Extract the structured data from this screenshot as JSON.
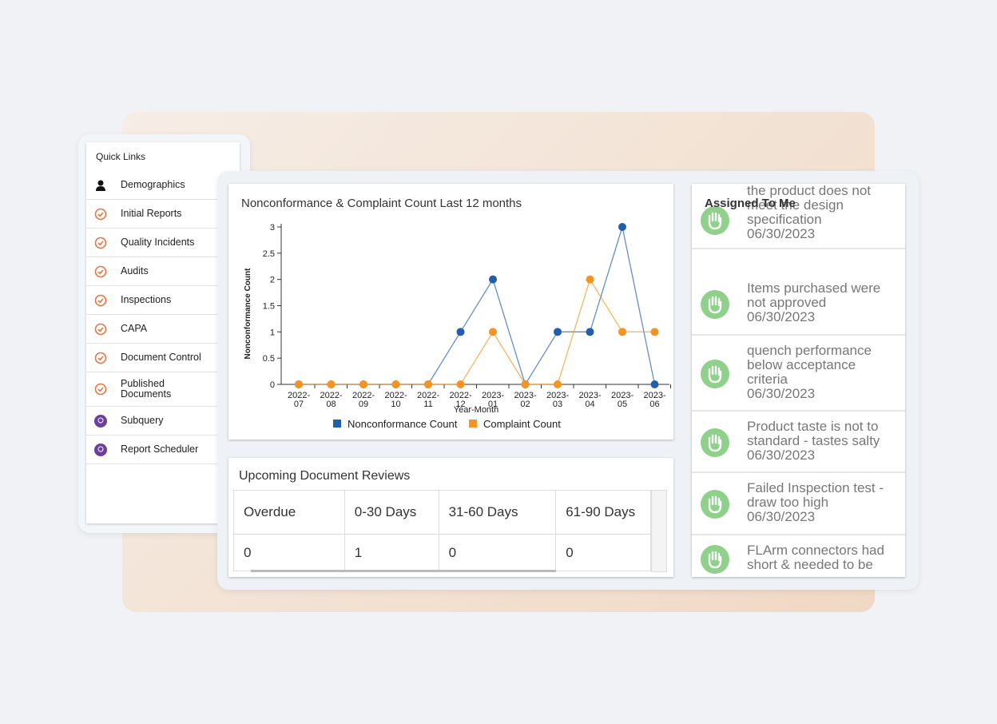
{
  "quick_links": {
    "title": "Quick Links",
    "items": [
      {
        "label": "Demographics",
        "icon": "person"
      },
      {
        "label": "Initial Reports",
        "icon": "orange"
      },
      {
        "label": "Quality Incidents",
        "icon": "orange"
      },
      {
        "label": "Audits",
        "icon": "orange"
      },
      {
        "label": "Inspections",
        "icon": "orange"
      },
      {
        "label": "CAPA",
        "icon": "orange"
      },
      {
        "label": "Document Control",
        "icon": "orange"
      },
      {
        "label": "Published Documents",
        "icon": "orange"
      },
      {
        "label": "Subquery",
        "icon": "purple"
      },
      {
        "label": "Report Scheduler",
        "icon": "purple"
      }
    ]
  },
  "chart_data": {
    "type": "line",
    "title": "Nonconformance & Complaint Count Last 12 months",
    "x_label": "Year-Month",
    "y_label": "Nonconformance Count",
    "categories": [
      "2022-07",
      "2022-08",
      "2022-09",
      "2022-10",
      "2022-11",
      "2022-12",
      "2023-01",
      "2023-02",
      "2023-03",
      "2023-04",
      "2023-05",
      "2023-06"
    ],
    "series": [
      {
        "name": "Nonconformance Count",
        "color": "#1f5fad",
        "values": [
          0,
          0,
          0,
          0,
          0,
          1,
          2,
          0,
          1,
          1,
          3,
          0
        ]
      },
      {
        "name": "Complaint Count",
        "color": "#f7931e",
        "values": [
          0,
          0,
          0,
          0,
          0,
          0,
          1,
          0,
          0,
          2,
          1,
          1
        ]
      }
    ],
    "ylim": [
      0,
      3
    ],
    "yticks": [
      0,
      0.5,
      1,
      1.5,
      2,
      2.5,
      3
    ],
    "grid": false
  },
  "document_reviews": {
    "title": "Upcoming Document Reviews",
    "headers": [
      "Overdue",
      "0-30 Days",
      "31-60 Days",
      "61-90 Days"
    ],
    "row": [
      "0",
      "1",
      "0",
      "0"
    ]
  },
  "assigned": {
    "title": "Assigned To Me",
    "items": [
      {
        "text": "the product does not meet the design specification",
        "date": "06/30/2023"
      },
      {
        "text": "Items purchased were not approved",
        "date": "06/30/2023"
      },
      {
        "text": "quench performance below acceptance criteria",
        "date": "06/30/2023"
      },
      {
        "text": "Product taste is not to standard - tastes salty",
        "date": "06/30/2023"
      },
      {
        "text": "Failed Inspection test - draw too high",
        "date": "06/30/2023"
      },
      {
        "text": "FLArm connectors had short & needed to be"
      }
    ]
  }
}
